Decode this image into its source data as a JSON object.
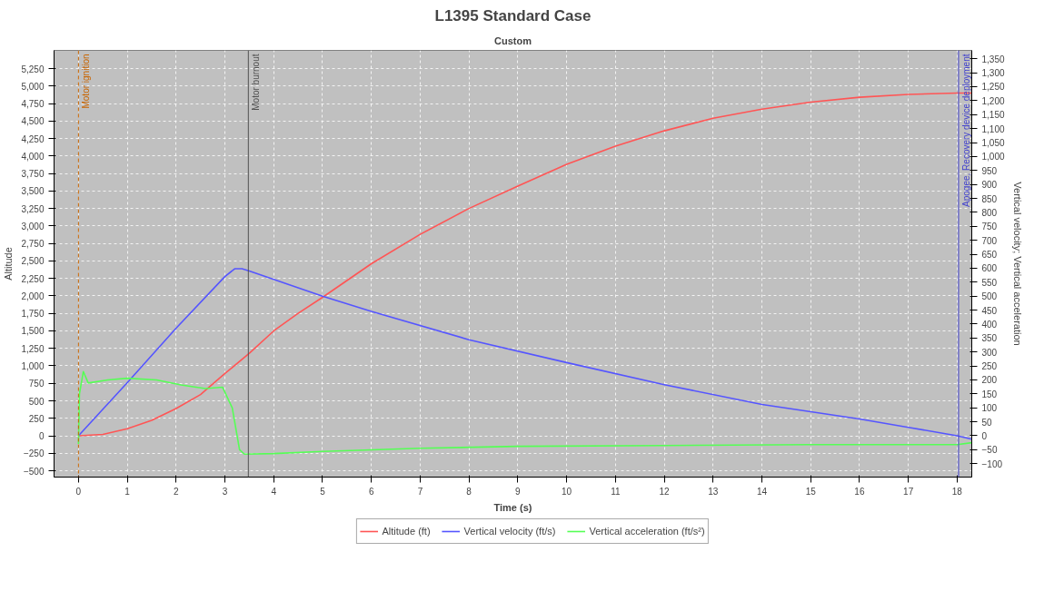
{
  "chart_data": {
    "type": "line",
    "title": "L1395 Standard Case",
    "subtitle": "Custom",
    "xlabel": "Time (s)",
    "ylabel": "Altitude",
    "y2label": "Vertical velocity; Vertical acceleration",
    "xlim": [
      -0.5,
      18.3
    ],
    "xticks": [
      0,
      1,
      2,
      3,
      4,
      5,
      6,
      7,
      8,
      9,
      10,
      11,
      12,
      13,
      14,
      15,
      16,
      17,
      18
    ],
    "ylim": [
      -590,
      5510
    ],
    "yticks": [
      -500,
      -250,
      0,
      250,
      500,
      750,
      {
        "value": 1000,
        "label": "1,000"
      },
      {
        "value": 1250,
        "label": "1,250"
      },
      {
        "value": 1500,
        "label": "1,500"
      },
      {
        "value": 1750,
        "label": "1,750"
      },
      {
        "value": 2000,
        "label": "2,000"
      },
      {
        "value": 2250,
        "label": "2,250"
      },
      {
        "value": 2500,
        "label": "2,500"
      },
      {
        "value": 2750,
        "label": "2,750"
      },
      {
        "value": 3000,
        "label": "3,000"
      },
      {
        "value": 3250,
        "label": "3,250"
      },
      {
        "value": 3500,
        "label": "3,500"
      },
      {
        "value": 3750,
        "label": "3,750"
      },
      {
        "value": 4000,
        "label": "4,000"
      },
      {
        "value": 4250,
        "label": "4,250"
      },
      {
        "value": 4500,
        "label": "4,500"
      },
      {
        "value": 4750,
        "label": "4,750"
      },
      {
        "value": 5000,
        "label": "5,000"
      },
      {
        "value": 5250,
        "label": "5,250"
      }
    ],
    "y2lim": [
      -148,
      1380
    ],
    "y2ticks": [
      -100,
      -50,
      0,
      50,
      100,
      150,
      200,
      250,
      300,
      350,
      400,
      450,
      500,
      550,
      600,
      650,
      700,
      750,
      800,
      850,
      900,
      950,
      {
        "value": 1000,
        "label": "1,000"
      },
      {
        "value": 1050,
        "label": "1,050"
      },
      {
        "value": 1100,
        "label": "1,100"
      },
      {
        "value": 1150,
        "label": "1,150"
      },
      {
        "value": 1200,
        "label": "1,200"
      },
      {
        "value": 1250,
        "label": "1,250"
      },
      {
        "value": 1300,
        "label": "1,300"
      },
      {
        "value": 1350,
        "label": "1,350"
      }
    ],
    "series": [
      {
        "name": "Altitude (ft)",
        "color": "#ff5555",
        "x": [
          0,
          0.5,
          1,
          1.5,
          2,
          2.5,
          3,
          3.5,
          4,
          4.5,
          5,
          6,
          7,
          8,
          9,
          10,
          11,
          12,
          13,
          14,
          15,
          16,
          17,
          18,
          18.3
        ],
        "values": [
          0,
          20,
          100,
          220,
          390,
          590,
          890,
          1180,
          1500,
          1750,
          1980,
          2460,
          2880,
          3250,
          3570,
          3880,
          4140,
          4360,
          4540,
          4670,
          4770,
          4840,
          4880,
          4900,
          4900
        ]
      },
      {
        "name": "Vertical velocity (ft/s)",
        "color": "#5555ff",
        "axis": "y2",
        "x": [
          0,
          1,
          2,
          3,
          3.2,
          3.35,
          3.5,
          4,
          5,
          6,
          8,
          10,
          12,
          14,
          16,
          17,
          18,
          18.3
        ],
        "values": [
          0,
          190,
          385,
          570,
          598,
          598,
          590,
          560,
          500,
          445,
          344,
          262,
          183,
          112,
          60,
          30,
          0,
          -12
        ]
      },
      {
        "name": "Vertical acceleration (ft/s²)",
        "color": "#55ff55",
        "axis": "y2",
        "x": [
          0,
          0.02,
          0.1,
          0.2,
          0.6,
          1.0,
          1.6,
          2.1,
          2.6,
          2.95,
          3.15,
          3.3,
          3.4,
          4,
          5,
          7,
          9,
          12,
          15,
          18,
          18.3
        ],
        "values": [
          -29,
          150,
          230,
          189,
          200,
          206,
          200,
          182,
          169,
          174,
          100,
          -50,
          -66,
          -64,
          -56,
          -45,
          -38,
          -35,
          -32,
          -32,
          -25
        ]
      }
    ],
    "ref_lines": [
      {
        "axis": "x",
        "value": 0,
        "label": "Motor ignition",
        "color": "#c86400",
        "line_style": "dashed"
      },
      {
        "axis": "x",
        "value": 3.48,
        "label": "Motor burnout",
        "color": "#505050",
        "line_style": "solid"
      },
      {
        "axis": "x",
        "value": 18.03,
        "label": "Apogee, Recovery device deployment",
        "color": "#4444cc",
        "line_style": "solid"
      }
    ],
    "grid": true,
    "legend": "bottom",
    "marker": "none",
    "line_style": "solid"
  }
}
